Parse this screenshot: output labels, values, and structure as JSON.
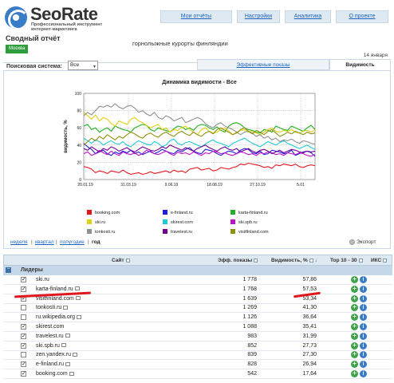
{
  "header": {
    "logo": "SeoRate",
    "logo_sub_1": "Профессиональный инструмент",
    "logo_sub_2": "интернет-маркетинга",
    "nav": [
      "Мои отчёты",
      "Настройки",
      "Аналитика",
      "О проекте"
    ]
  },
  "report": {
    "title": "Сводный отчёт",
    "city": "Москва",
    "project": "горнолыжные курорты финляндии",
    "date": "14 января"
  },
  "controls": {
    "ps_label": "Поисковая система:",
    "ps_value": "Все",
    "tab_shows": "Эффективные показы",
    "tab_visibility": "Видимость"
  },
  "chart_data": {
    "type": "line",
    "title": "Динамика видимости - Все",
    "ylabel": "видимость, %",
    "ylim": [
      0,
      100
    ],
    "yticks": [
      "0",
      "20",
      "40",
      "60",
      "80",
      "100"
    ],
    "x_ticks": [
      "20.01.19",
      "31.03.19",
      "9.06.19",
      "18.08.19",
      "27.10.19",
      "5.01"
    ],
    "grid": true,
    "legend_position": "bottom",
    "series": [
      {
        "name": "booking.com",
        "color": "#e8141c",
        "values": [
          15,
          14,
          12,
          8,
          10,
          9,
          7,
          10,
          9,
          8,
          11,
          8,
          6,
          7,
          8,
          6,
          7,
          9,
          7,
          8,
          9,
          10,
          8,
          11,
          9,
          10,
          8,
          12,
          13,
          14,
          11,
          12,
          13,
          10,
          11,
          14,
          13,
          12,
          14,
          15,
          18,
          17,
          19,
          18,
          17,
          16,
          14,
          15,
          13,
          17,
          16,
          18,
          17,
          16,
          18,
          15,
          14,
          16,
          17,
          16
        ]
      },
      {
        "name": "e-finland.ru",
        "color": "#1f1fd8",
        "values": [
          42,
          38,
          35,
          30,
          32,
          34,
          30,
          28,
          32,
          30,
          33,
          31,
          34,
          30,
          32,
          29,
          31,
          33,
          30,
          32,
          35,
          33,
          31,
          30,
          34,
          32,
          35,
          37,
          33,
          31,
          30,
          35,
          34,
          33,
          30,
          28,
          31,
          33,
          32,
          30,
          34,
          36,
          35,
          31,
          30,
          33,
          29,
          30,
          34,
          33,
          32,
          30,
          31,
          34,
          28,
          30,
          32,
          33,
          31,
          27
        ]
      },
      {
        "name": "karta-finland.ru",
        "color": "#22b022",
        "values": [
          62,
          64,
          58,
          60,
          55,
          58,
          60,
          56,
          62,
          60,
          58,
          57,
          55,
          60,
          62,
          64,
          63,
          58,
          56,
          60,
          58,
          57,
          55,
          59,
          62,
          61,
          58,
          60,
          57,
          62,
          64,
          63,
          60,
          58,
          61,
          57,
          55,
          62,
          65,
          66,
          64,
          60,
          58,
          57,
          55,
          54,
          58,
          57,
          55,
          62,
          60,
          58,
          57,
          62,
          60,
          58,
          56,
          60,
          63,
          58
        ]
      },
      {
        "name": "ski.ru",
        "color": "#e0d010",
        "values": [
          78,
          74,
          70,
          75,
          68,
          72,
          70,
          65,
          62,
          68,
          66,
          64,
          70,
          72,
          68,
          66,
          63,
          60,
          62,
          64,
          58,
          60,
          55,
          58,
          57,
          60,
          62,
          58,
          55,
          52,
          58,
          60,
          56,
          54,
          55,
          58,
          60,
          56,
          52,
          55,
          57,
          58,
          55,
          56,
          54,
          52,
          55,
          58,
          60,
          56,
          55,
          57,
          56,
          58,
          55,
          54,
          56,
          57,
          55,
          58
        ]
      },
      {
        "name": "skirest.com",
        "color": "#20c8d8",
        "values": [
          48,
          45,
          42,
          46,
          44,
          40,
          43,
          45,
          42,
          41,
          44,
          40,
          38,
          42,
          45,
          43,
          41,
          40,
          44,
          42,
          38,
          40,
          45,
          47,
          42,
          40,
          43,
          44,
          42,
          40,
          38,
          41,
          44,
          46,
          43,
          42,
          40,
          38,
          42,
          44,
          46,
          48,
          45,
          42,
          40,
          38,
          41,
          44,
          42,
          40,
          43,
          45,
          42,
          40,
          38,
          36,
          38,
          40,
          37,
          35
        ]
      },
      {
        "name": "ski.spb.ru",
        "color": "#c010c8",
        "values": [
          30,
          32,
          28,
          30,
          34,
          31,
          29,
          33,
          30,
          28,
          32,
          30,
          29,
          31,
          28,
          30,
          34,
          32,
          30,
          29,
          31,
          33,
          30,
          28,
          32,
          30,
          31,
          29,
          32,
          30,
          28,
          31,
          30,
          33,
          32,
          30,
          31,
          29,
          28,
          30,
          32,
          31,
          29,
          30,
          28,
          31,
          30,
          32,
          31,
          29,
          30,
          28,
          31,
          30,
          29,
          31,
          30,
          28,
          27,
          29
        ]
      },
      {
        "name": "tonkosti.ru",
        "color": "#909090",
        "values": [
          74,
          78,
          75,
          80,
          85,
          84,
          86,
          84,
          88,
          84,
          82,
          85,
          86,
          83,
          78,
          80,
          76,
          74,
          78,
          72,
          70,
          74,
          72,
          68,
          70,
          72,
          66,
          68,
          70,
          72,
          70,
          65,
          62,
          60,
          64,
          66,
          62,
          60,
          58,
          55,
          52,
          55,
          56,
          54,
          50,
          52,
          48,
          50,
          46,
          48,
          44,
          46,
          45,
          47,
          44,
          42,
          45,
          44,
          42,
          41
        ]
      },
      {
        "name": "travelest.ru",
        "color": "#700090",
        "values": [
          36,
          34,
          38,
          35,
          32,
          36,
          34,
          38,
          36,
          33,
          35,
          37,
          34,
          32,
          35,
          38,
          36,
          34,
          33,
          35,
          38,
          36,
          40,
          38,
          36,
          34,
          37,
          35,
          33,
          36,
          38,
          40,
          37,
          35,
          33,
          36,
          38,
          35,
          34,
          36,
          32,
          34,
          36,
          33,
          31,
          34,
          35,
          33,
          30,
          32,
          34,
          31,
          33,
          35,
          34,
          32,
          31,
          33,
          32,
          33
        ]
      },
      {
        "name": "visitfinland.com",
        "color": "#909010",
        "values": [
          40,
          44,
          48,
          45,
          50,
          47,
          52,
          49,
          46,
          50,
          48,
          52,
          55,
          53,
          50,
          48,
          52,
          54,
          51,
          49,
          53,
          55,
          52,
          50,
          54,
          56,
          53,
          51,
          55,
          52,
          50,
          54,
          56,
          53,
          58,
          60,
          57,
          55,
          52,
          54,
          58,
          60,
          56,
          53,
          57,
          55,
          52,
          56,
          58,
          54,
          50,
          52,
          55,
          53,
          56,
          54,
          52,
          55,
          53,
          54
        ]
      }
    ]
  },
  "periods": {
    "week": "неделя",
    "month": "месяц",
    "quarter": "квартал",
    "half": "полугодие",
    "year": "год",
    "sep": "|"
  },
  "export_label": "Экспорт",
  "table": {
    "headers": {
      "site": "Сайт",
      "shows": "Эфф. показы",
      "visibility": "Видимость, %",
      "top": "Тор 10 - 30",
      "iks": "ИКС"
    },
    "group": "Лидеры",
    "rows": [
      {
        "site": "ski.ru",
        "shows": "1 778",
        "vis": "57,86",
        "checked": true,
        "ext": false
      },
      {
        "site": "karta-finland.ru",
        "shows": "1 768",
        "vis": "57,53",
        "checked": true,
        "ext": true
      },
      {
        "site": "visitfinland.com",
        "shows": "1 639",
        "vis": "53,34",
        "checked": true,
        "ext": true
      },
      {
        "site": "tonkosti.ru",
        "shows": "1 269",
        "vis": "41,30",
        "checked": false,
        "ext": true
      },
      {
        "site": "ru.wikipedia.org",
        "shows": "1 126",
        "vis": "36,64",
        "checked": false,
        "ext": true
      },
      {
        "site": "skirest.com",
        "shows": "1 088",
        "vis": "35,41",
        "checked": true,
        "ext": false
      },
      {
        "site": "travelest.ru",
        "shows": "983",
        "vis": "31,99",
        "checked": true,
        "ext": true
      },
      {
        "site": "ski.spb.ru",
        "shows": "852",
        "vis": "27,73",
        "checked": true,
        "ext": true
      },
      {
        "site": "zen.yandex.ru",
        "shows": "839",
        "vis": "27,30",
        "checked": false,
        "ext": true
      },
      {
        "site": "e-finland.ru",
        "shows": "828",
        "vis": "26,94",
        "checked": true,
        "ext": true
      },
      {
        "site": "booking.com",
        "shows": "542",
        "vis": "17,64",
        "checked": true,
        "ext": true
      }
    ]
  }
}
